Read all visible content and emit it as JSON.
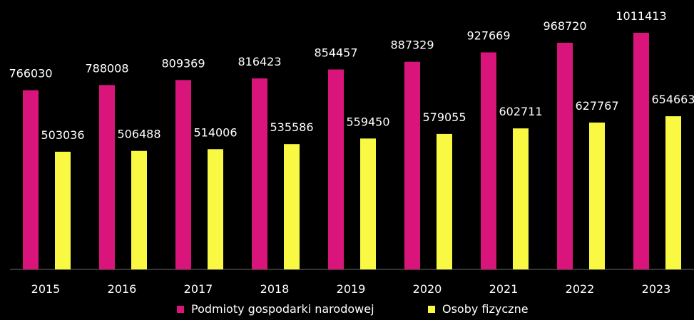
{
  "chart_data": {
    "type": "bar",
    "categories": [
      "2015",
      "2016",
      "2017",
      "2018",
      "2019",
      "2020",
      "2021",
      "2022",
      "2023"
    ],
    "series": [
      {
        "name": "Podmioty gospodarki narodowej",
        "color": "#D9157C",
        "values": [
          766030,
          788008,
          809369,
          816423,
          854457,
          887329,
          927669,
          968720,
          1011413
        ]
      },
      {
        "name": "Osoby fizyczne",
        "color": "#F9F843",
        "values": [
          503036,
          506488,
          514006,
          535586,
          559450,
          579055,
          602711,
          627767,
          654663
        ]
      }
    ],
    "ylim": [
      0,
      1011413
    ],
    "grid": false,
    "legend_position": "bottom",
    "background": "#000000"
  }
}
